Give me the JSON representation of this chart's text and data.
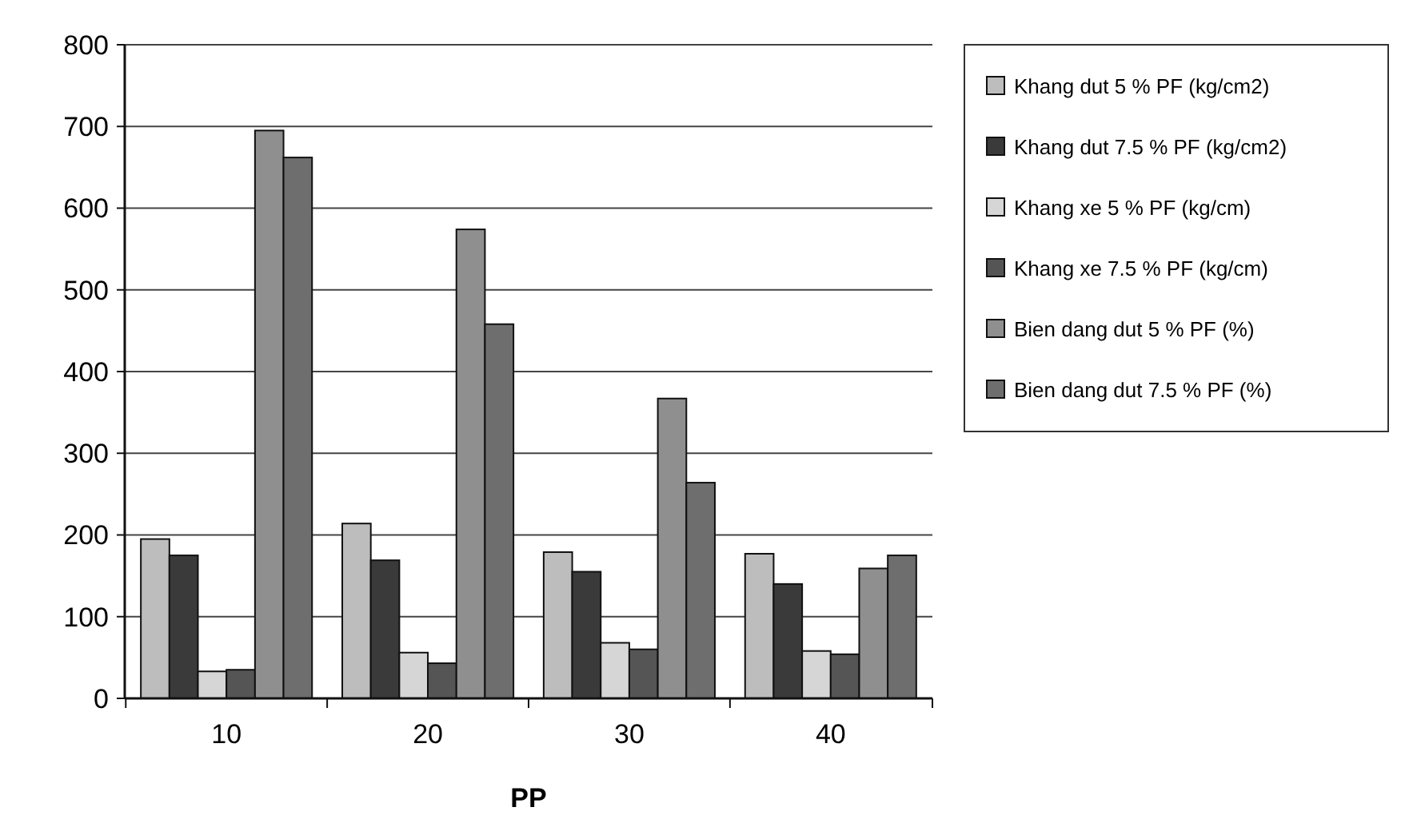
{
  "chart_data": {
    "type": "bar",
    "xlabel": "PP",
    "categories": [
      "10",
      "20",
      "30",
      "40"
    ],
    "series": [
      {
        "name": "Khang dut 5 % PF (kg/cm2)",
        "color": "#bdbdbd",
        "values": [
          195,
          214,
          179,
          177
        ]
      },
      {
        "name": "Khang dut 7.5 % PF (kg/cm2)",
        "color": "#3a3a3a",
        "values": [
          175,
          169,
          155,
          140
        ]
      },
      {
        "name": "Khang xe 5 % PF (kg/cm)",
        "color": "#d6d6d6",
        "values": [
          33,
          56,
          68,
          58
        ]
      },
      {
        "name": "Khang xe 7.5 % PF (kg/cm)",
        "color": "#555555",
        "values": [
          35,
          43,
          60,
          54
        ]
      },
      {
        "name": "Bien dang dut 5 % PF (%)",
        "color": "#8f8f8f",
        "values": [
          695,
          574,
          367,
          159
        ]
      },
      {
        "name": "Bien dang dut 7.5 % PF (%)",
        "color": "#6e6e6e",
        "values": [
          662,
          458,
          264,
          175
        ]
      }
    ],
    "ylim": [
      0,
      800
    ],
    "yticks": [
      0,
      100,
      200,
      300,
      400,
      500,
      600,
      700,
      800
    ],
    "grid": "y",
    "legend": "right"
  }
}
